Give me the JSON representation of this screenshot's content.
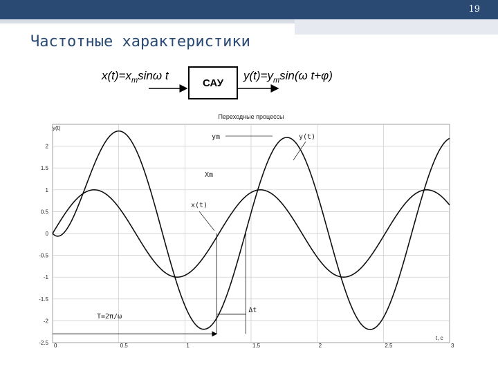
{
  "slide": {
    "page_number": "19",
    "title": "Частотные характеристики"
  },
  "formulas": {
    "input": {
      "main": "x(t)=x",
      "sub": "m",
      "rest": "sinω t"
    },
    "block": "САУ",
    "output": {
      "main": "y(t)=y",
      "sub": "m",
      "rest": "sin(ω t+φ)"
    }
  },
  "chart_data": {
    "type": "line",
    "title": "Переходные процессы",
    "ylabel": "y(t)",
    "xlabel": "t, c",
    "xlim": [
      0,
      3
    ],
    "ylim": [
      -2.5,
      2.5
    ],
    "x_ticks": [
      "0",
      "0.5",
      "1",
      "1.5",
      "2",
      "2.5",
      "3"
    ],
    "y_ticks": [
      "2",
      "1.5",
      "1",
      "0.5",
      "0",
      "-0.5",
      "-1",
      "-1.5",
      "-2",
      "-2.5"
    ],
    "grid": true,
    "series": [
      {
        "name": "x(t)",
        "amplitude": 1.0,
        "omega": 5.0,
        "phase": 0
      },
      {
        "name": "y(t)",
        "amplitude": 2.2,
        "omega": 5.0,
        "phase": -1.0,
        "transient_decay": 5.0
      }
    ],
    "annotations": {
      "ym": "ym",
      "yt": "y(t)",
      "xm": "Xm",
      "xt": "x(t)",
      "delta_t": "Δt",
      "period": "T=2π/ω"
    }
  },
  "colors": {
    "header": "#2a4a74",
    "grid": "#c8c8c8",
    "curve": "#111111"
  }
}
